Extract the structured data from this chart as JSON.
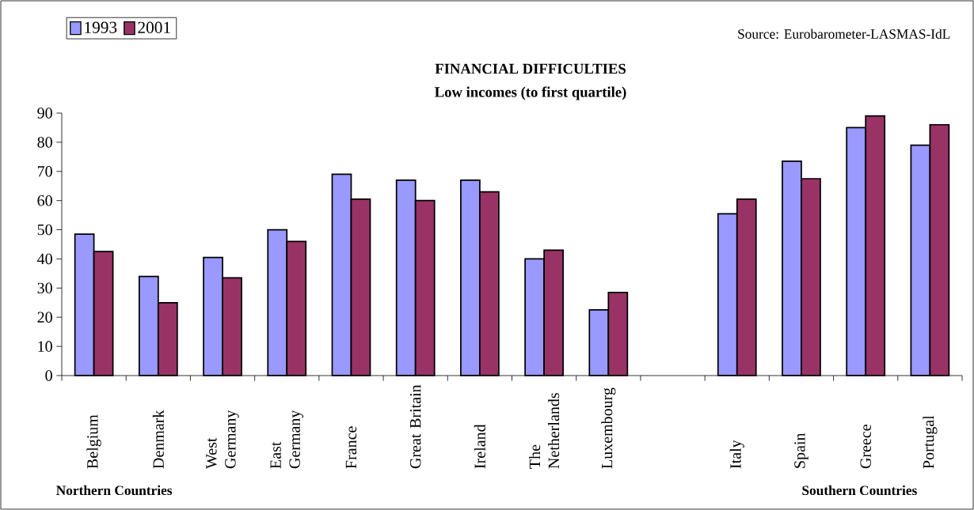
{
  "chart_data": {
    "type": "bar",
    "title": "FINANCIAL DIFFICULTIES",
    "subtitle": "Low incomes (to first quartile)",
    "categories": [
      "Belgium",
      "Denmark",
      "West Germany",
      "East Germany",
      "France",
      "Great Britain",
      "Ireland",
      "The Netherlands",
      "Luxembourg",
      null,
      "Italy",
      "Spain",
      "Greece",
      "Portugal"
    ],
    "series": [
      {
        "name": "1993",
        "color": "#9999ff",
        "values": [
          48.5,
          34,
          40.5,
          50,
          69,
          67,
          67,
          40,
          22.5,
          null,
          55.5,
          73.5,
          85,
          79
        ]
      },
      {
        "name": "2001",
        "color": "#993366",
        "values": [
          42.5,
          25,
          33.5,
          46,
          60.5,
          60,
          63,
          43,
          28.5,
          null,
          60.5,
          67.5,
          89,
          86
        ]
      }
    ],
    "ylim": [
      0,
      90
    ],
    "yticks": [
      0,
      10,
      20,
      30,
      40,
      50,
      60,
      70,
      80,
      90
    ],
    "grid": false,
    "legend": "top left",
    "annotations": [
      "Source: Eurobarometer-LASMAS-IdL",
      "Northern Countries",
      "Southern Countries"
    ]
  }
}
